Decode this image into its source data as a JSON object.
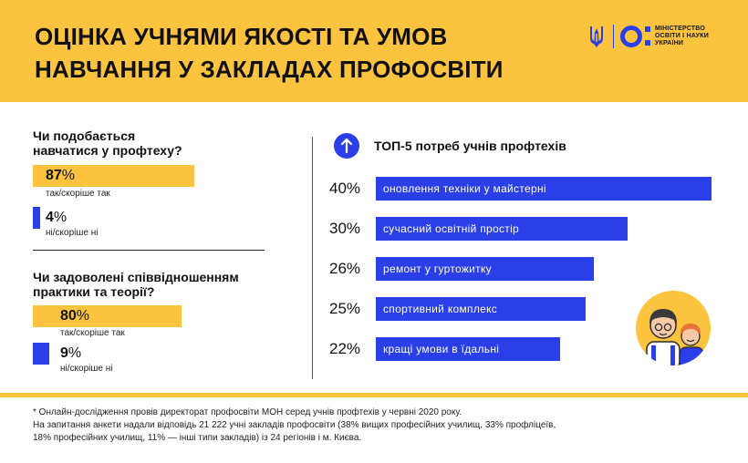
{
  "title": {
    "line1": "ОЦІНКА УЧНЯМИ ЯКОСТІ ТА УМОВ",
    "line2": "НАВЧАННЯ У ЗАКЛАДАХ ПРОФОСВІТИ"
  },
  "logo": {
    "line1": "МІНІСТЕРСТВО",
    "line2": "ОСВІТИ І НАУКИ",
    "line3": "УКРАЇНИ"
  },
  "left": {
    "q1": {
      "line1": "Чи подобається",
      "line2": "навчатися у профтеху?",
      "answers": [
        {
          "value": "87",
          "unit": "%",
          "label": "так/скоріше так"
        },
        {
          "value": "4",
          "unit": "%",
          "label": "ні/скоріше ні"
        }
      ]
    },
    "q2": {
      "line1": "Чи задоволені співвідношенням",
      "line2": "практики та теорії?",
      "answers": [
        {
          "value": "80",
          "unit": "%",
          "label": "так/скоріше так"
        },
        {
          "value": "9",
          "unit": "%",
          "label": "ні/скоріше ні"
        }
      ]
    }
  },
  "right": {
    "title": "ТОП-5 потреб учнів профтехів"
  },
  "footnote": {
    "line1": "* Онлайн-дослідження провів директорат профосвіти МОН серед учнів профтехів у червні 2020 року.",
    "line2": "На запитання анкети надали відповідь 21 222 учні закладів профосвіти (38% вищих професійних училищ, 33% профліцеїв,",
    "line3": "18% професійних училищ, 11% — інші типи закладів) із 24 регіонів і м. Києва."
  },
  "colors": {
    "yellow": "#fcc43e",
    "blue": "#2b3fe8"
  },
  "chart_data": [
    {
      "type": "bar",
      "categories": [
        "так/скоріше так",
        "ні/скоріше ні"
      ],
      "values": [
        87,
        4
      ],
      "title": "Чи подобається навчатися у профтеху?",
      "ylim": [
        0,
        100
      ]
    },
    {
      "type": "bar",
      "categories": [
        "так/скоріше так",
        "ні/скоріше ні"
      ],
      "values": [
        80,
        9
      ],
      "title": "Чи задоволені співвідношенням практики та теорії?",
      "ylim": [
        0,
        100
      ]
    },
    {
      "type": "bar",
      "title": "ТОП-5 потреб учнів профтехів",
      "categories": [
        "оновлення техніки у майстерні",
        "сучасний освітній простір",
        "ремонт у гуртожитку",
        "спортивний комплекс",
        "кращі умови в їдальні"
      ],
      "values": [
        40,
        30,
        26,
        25,
        22
      ],
      "value_labels": [
        "40%",
        "30%",
        "26%",
        "25%",
        "22%"
      ],
      "ylim": [
        0,
        40
      ]
    }
  ]
}
